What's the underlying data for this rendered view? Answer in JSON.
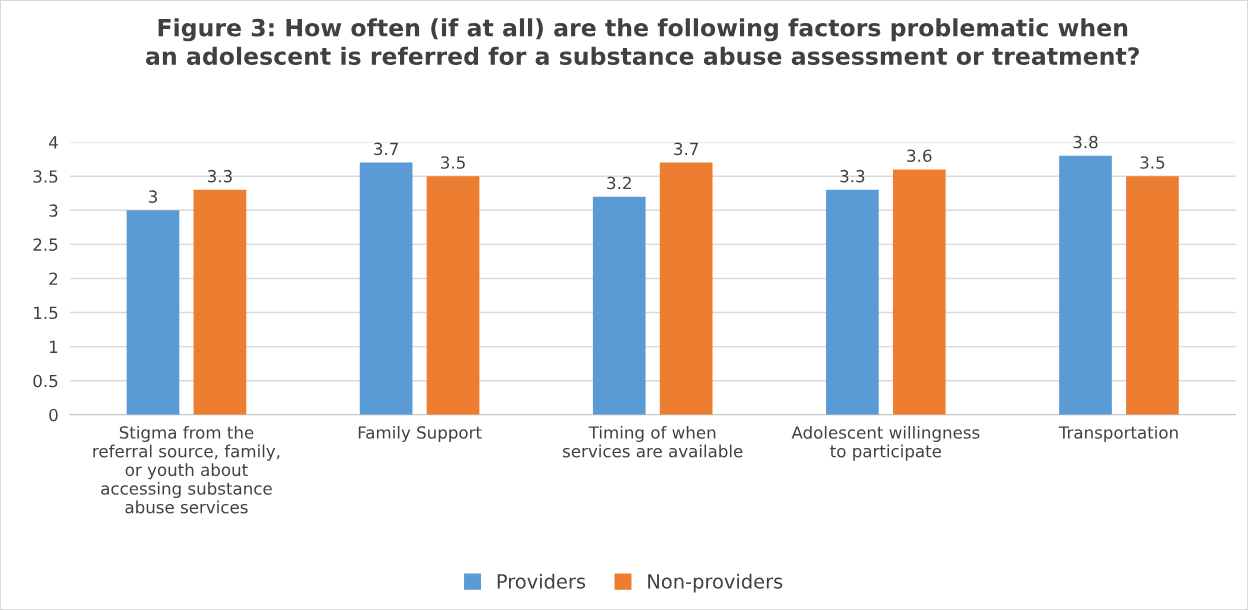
{
  "chart_data": {
    "type": "bar",
    "title": "Figure 3: How often (if at all) are the following factors problematic when\nan adolescent is referred for a substance abuse assessment or treatment?",
    "categories": [
      "Stigma from the\nreferral source, family,\nor youth about\naccessing substance\nabuse services",
      "Family Support",
      "Timing of when\nservices are available",
      "Adolescent willingness\nto participate",
      "Transportation"
    ],
    "series": [
      {
        "name": "Providers",
        "color": "#5b9bd5",
        "values": [
          3,
          3.7,
          3.2,
          3.3,
          3.8
        ]
      },
      {
        "name": "Non-providers",
        "color": "#ed7d31",
        "values": [
          3.3,
          3.5,
          3.7,
          3.6,
          3.5
        ]
      }
    ],
    "ylim": [
      0,
      4
    ],
    "yticks": [
      0,
      0.5,
      1,
      1.5,
      2,
      2.5,
      3,
      3.5,
      4
    ],
    "grid": "y",
    "legend": "bottom",
    "data_labels": true
  }
}
